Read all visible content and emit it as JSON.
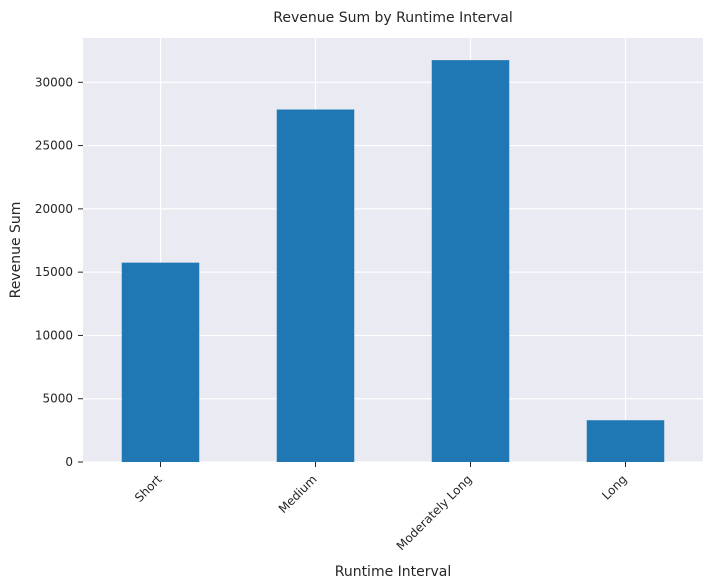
{
  "chart_data": {
    "type": "bar",
    "title": "Revenue Sum by Runtime Interval",
    "xlabel": "Runtime Interval",
    "ylabel": "Revenue Sum",
    "categories": [
      "Short",
      "Medium",
      "Moderately Long",
      "Long"
    ],
    "values": [
      15750,
      27850,
      31750,
      3300
    ],
    "ylim": [
      0,
      33500
    ],
    "yticks": [
      0,
      5000,
      10000,
      15000,
      20000,
      25000,
      30000
    ],
    "grid": true,
    "bar_color": "#1f77b4",
    "background_color": "#eaeaf2",
    "grid_color": "#ffffff"
  }
}
